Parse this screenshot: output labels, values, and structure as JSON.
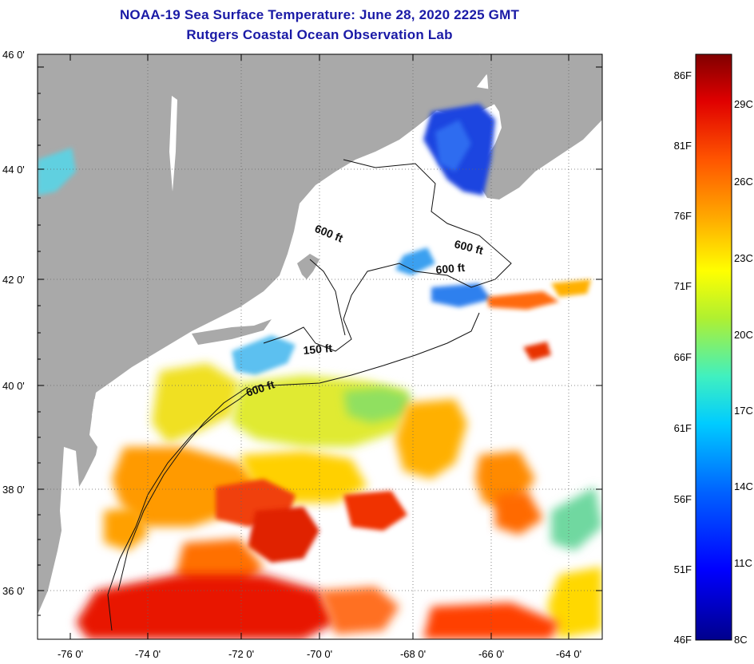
{
  "title": {
    "line1": "NOAA-19 Sea Surface Temperature:  June 28, 2020 2225 GMT",
    "line2": "Rutgers Coastal Ocean Observation Lab"
  },
  "axes": {
    "lat_ticks": [
      {
        "value": 46,
        "label": "46 0'"
      },
      {
        "value": 44,
        "label": "44 0'"
      },
      {
        "value": 42,
        "label": "42 0'"
      },
      {
        "value": 40,
        "label": "40 0'"
      },
      {
        "value": 38,
        "label": "38 0'"
      },
      {
        "value": 36,
        "label": "36 0'"
      }
    ],
    "lon_ticks": [
      {
        "value": -76,
        "label": "-76 0'"
      },
      {
        "value": -74,
        "label": "-74 0'"
      },
      {
        "value": -72,
        "label": "-72 0'"
      },
      {
        "value": -70,
        "label": "-70 0'"
      },
      {
        "value": -68,
        "label": "-68 0'"
      },
      {
        "value": -66,
        "label": "-66 0'"
      },
      {
        "value": -64,
        "label": "-64 0'"
      }
    ]
  },
  "contours": [
    {
      "label": "600 ft"
    },
    {
      "label": "600 ft"
    },
    {
      "label": "600 ft"
    },
    {
      "label": "150 ft"
    },
    {
      "label": "600 ft"
    }
  ],
  "colorbar": {
    "fahrenheit": [
      {
        "value": 86,
        "label": "86F"
      },
      {
        "value": 81,
        "label": "81F"
      },
      {
        "value": 76,
        "label": "76F"
      },
      {
        "value": 71,
        "label": "71F"
      },
      {
        "value": 66,
        "label": "66F"
      },
      {
        "value": 61,
        "label": "61F"
      },
      {
        "value": 56,
        "label": "56F"
      },
      {
        "value": 51,
        "label": "51F"
      },
      {
        "value": 46,
        "label": "46F"
      }
    ],
    "celsius": [
      {
        "value": 29,
        "label": "29C"
      },
      {
        "value": 26,
        "label": "26C"
      },
      {
        "value": 23,
        "label": "23C"
      },
      {
        "value": 20,
        "label": "20C"
      },
      {
        "value": 17,
        "label": "17C"
      },
      {
        "value": 14,
        "label": "14C"
      },
      {
        "value": 11,
        "label": "11C"
      },
      {
        "value": 8,
        "label": "8C"
      }
    ]
  },
  "colors": {
    "land": "#a9a9a9",
    "title": "#1a1aa6",
    "ocean_no_data": "#ffffff"
  }
}
